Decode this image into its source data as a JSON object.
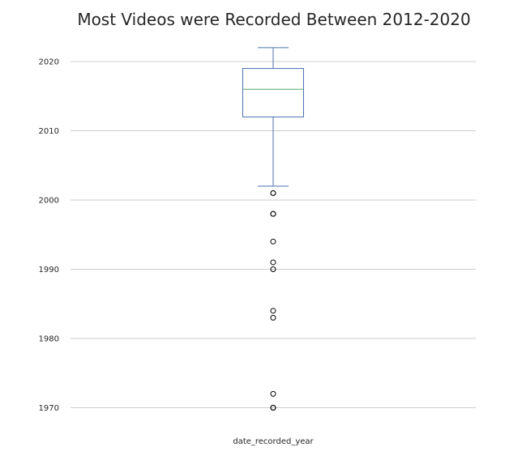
{
  "chart_data": {
    "type": "box",
    "title": "Most Videos were Recorded Between 2012-2020",
    "xlabel": "date_recorded_year",
    "ylabel": "",
    "categories": [
      "date_recorded_year"
    ],
    "ylim": [
      1967,
      2024
    ],
    "yticks": [
      1970,
      1980,
      1990,
      2000,
      2010,
      2020
    ],
    "grid": "horizontal",
    "box": {
      "whisker_low": 2002,
      "q1": 2012,
      "median": 2016,
      "q3": 2019,
      "whisker_high": 2022
    },
    "outliers": [
      2001,
      2001,
      1998,
      1998,
      1994,
      1991,
      1990,
      1984,
      1983,
      1972,
      1970,
      1970
    ],
    "colors": {
      "box": "#4c72b0",
      "median": "#55a868",
      "whisker": "#4c72b0",
      "outlier": "#000000",
      "grid": "#cccccc",
      "text": "#262626"
    }
  }
}
